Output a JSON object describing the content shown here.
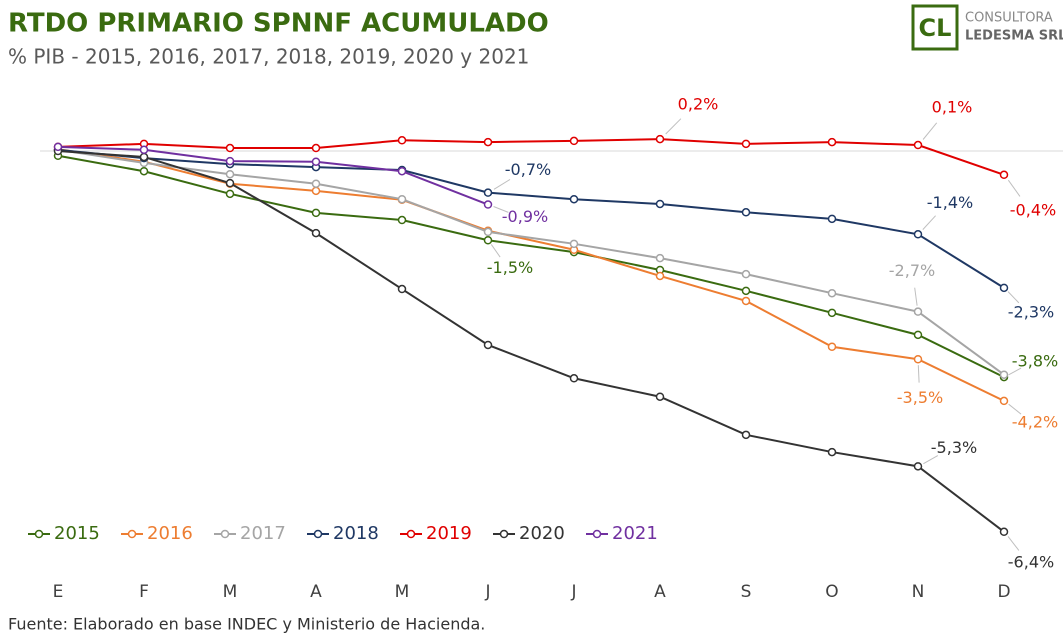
{
  "chart_data": {
    "type": "line",
    "title": "RTDO PRIMARIO SPNNF ACUMULADO",
    "subtitle": "% PIB - 2015, 2016, 2017, 2018, 2019, 2020 y 2021",
    "source": "Fuente: Elaborado en base INDEC y Ministerio de Hacienda.",
    "logo": {
      "mark": "CL",
      "line1": "CONSULTORA",
      "line2": "LEDESMA SRL"
    },
    "categories": [
      "E",
      "F",
      "M",
      "A",
      "M",
      "J",
      "J",
      "A",
      "S",
      "O",
      "N",
      "D"
    ],
    "series": [
      {
        "name": "2015",
        "color": "#3a6b10",
        "values": [
          -0.08,
          -0.34,
          -0.72,
          -1.04,
          -1.16,
          -1.5,
          -1.7,
          -2.0,
          -2.35,
          -2.72,
          -3.09,
          -3.8
        ],
        "value_labels": [
          null,
          null,
          null,
          null,
          null,
          "-1,5%",
          null,
          null,
          null,
          null,
          null,
          "-3,8%"
        ]
      },
      {
        "name": "2016",
        "color": "#ed7d31",
        "values": [
          0.03,
          -0.18,
          -0.55,
          -0.67,
          -0.82,
          -1.34,
          -1.66,
          -2.1,
          -2.52,
          -3.29,
          -3.5,
          -4.2
        ],
        "value_labels": [
          null,
          null,
          null,
          null,
          null,
          null,
          null,
          null,
          null,
          null,
          "-3,5%",
          "-4,2%"
        ]
      },
      {
        "name": "2017",
        "color": "#a5a5a5",
        "values": [
          0.02,
          -0.2,
          -0.39,
          -0.55,
          -0.81,
          -1.36,
          -1.56,
          -1.8,
          -2.07,
          -2.39,
          -2.7,
          -3.76
        ],
        "value_labels": [
          null,
          null,
          null,
          null,
          null,
          null,
          null,
          null,
          null,
          null,
          "-2,7%",
          null
        ]
      },
      {
        "name": "2018",
        "color": "#1f3864",
        "values": [
          0.02,
          -0.12,
          -0.22,
          -0.27,
          -0.32,
          -0.7,
          -0.81,
          -0.89,
          -1.03,
          -1.14,
          -1.4,
          -2.3
        ],
        "value_labels": [
          null,
          null,
          null,
          null,
          null,
          "-0,7%",
          null,
          null,
          null,
          null,
          "-1,4%",
          "-2,3%"
        ]
      },
      {
        "name": "2019",
        "color": "#e00000",
        "values": [
          0.07,
          0.12,
          0.05,
          0.05,
          0.18,
          0.15,
          0.17,
          0.2,
          0.12,
          0.15,
          0.1,
          -0.4
        ],
        "value_labels": [
          null,
          null,
          null,
          null,
          null,
          null,
          null,
          "0,2%",
          null,
          null,
          "0,1%",
          "-0,4%"
        ]
      },
      {
        "name": "2020",
        "color": "#333333",
        "values": [
          0,
          -0.1,
          -0.54,
          -1.38,
          -2.32,
          -3.26,
          -3.82,
          -4.13,
          -4.77,
          -5.06,
          -5.3,
          -6.4
        ],
        "value_labels": [
          null,
          null,
          null,
          null,
          null,
          null,
          null,
          null,
          null,
          null,
          "-5,3%",
          "-6,4%"
        ]
      },
      {
        "name": "2021",
        "color": "#7030a0",
        "values": [
          0.07,
          0.02,
          -0.17,
          -0.18,
          -0.34,
          -0.9,
          null,
          null,
          null,
          null,
          null,
          null
        ],
        "value_labels": [
          null,
          null,
          null,
          null,
          null,
          "-0,9%",
          null,
          null,
          null,
          null,
          null,
          null
        ]
      }
    ]
  }
}
